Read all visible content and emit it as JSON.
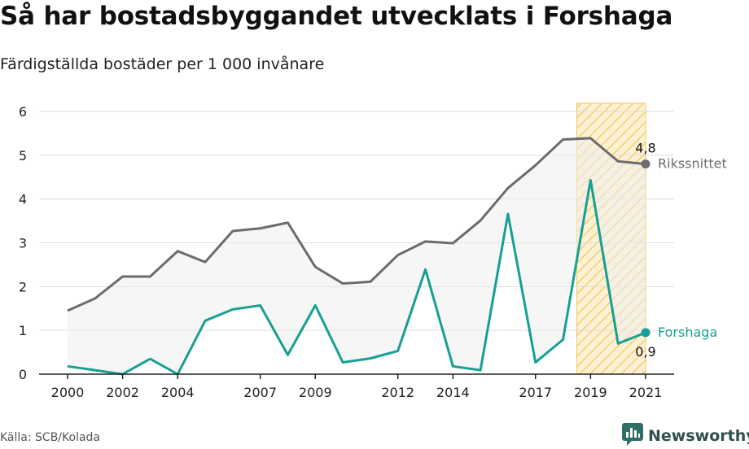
{
  "header": {
    "title": "Så har bostadsbyggandet utvecklats i Forshaga",
    "subtitle": "Färdigställda bostäder per 1 000 invånare"
  },
  "footer": {
    "source": "Källa: SCB/Kolada",
    "brand": "Newsworthy",
    "logo_icon": "newsworthy-logo-icon"
  },
  "colors": {
    "riket": "#6e6a70",
    "forshaga": "#16a094",
    "highlight": "#f5c857",
    "area": "#efefef",
    "grid": "#dddddd"
  },
  "chart_data": {
    "type": "line",
    "x": [
      2000,
      2001,
      2002,
      2003,
      2004,
      2005,
      2006,
      2007,
      2008,
      2009,
      2010,
      2011,
      2012,
      2013,
      2014,
      2015,
      2016,
      2017,
      2018,
      2019,
      2020,
      2021
    ],
    "series": [
      {
        "name": "Rikssnittet",
        "label": "4,8",
        "values": [
          1.45,
          1.73,
          2.23,
          2.23,
          2.81,
          2.56,
          3.27,
          3.33,
          3.46,
          2.45,
          2.07,
          2.11,
          2.72,
          3.03,
          2.99,
          3.51,
          4.25,
          4.77,
          5.36,
          5.39,
          4.86,
          4.8
        ]
      },
      {
        "name": "Forshaga",
        "label": "0,9",
        "values": [
          0.18,
          0.09,
          0.0,
          0.35,
          0.0,
          1.22,
          1.48,
          1.57,
          0.44,
          1.57,
          0.27,
          0.36,
          0.53,
          2.39,
          0.18,
          0.09,
          3.66,
          0.27,
          0.79,
          4.43,
          0.7,
          0.95
        ]
      }
    ],
    "xticks": [
      "2000",
      "2002",
      "2004",
      "2007",
      "2009",
      "2012",
      "2014",
      "2017",
      "2019",
      "2021"
    ],
    "yticks": [
      "0",
      "1",
      "2",
      "3",
      "4",
      "5",
      "6"
    ],
    "xlim": [
      2000,
      2021
    ],
    "ylim": [
      0,
      6
    ],
    "highlight_range": [
      2019,
      2021
    ],
    "grid": true,
    "legend": "direct labels at line ends"
  }
}
